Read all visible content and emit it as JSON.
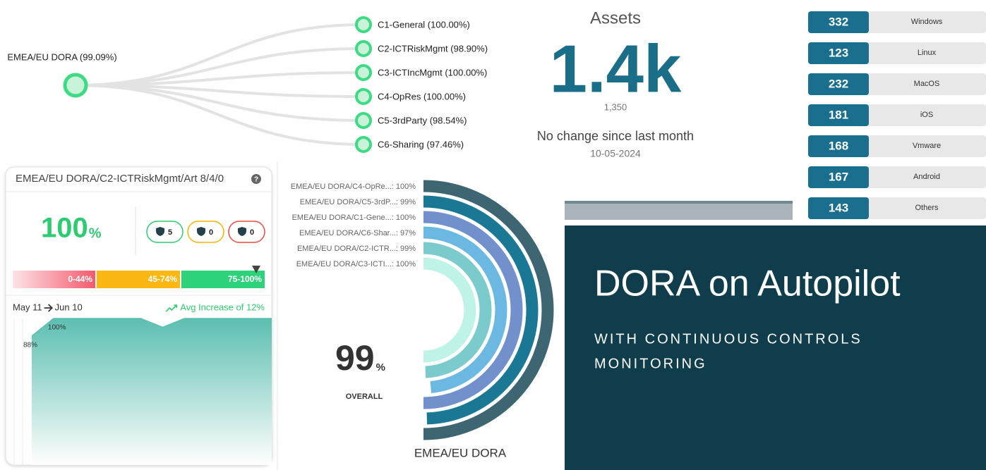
{
  "tree": {
    "root": "EMEA/EU DORA (99.09%)",
    "children": [
      "C1-General (100.00%)",
      "C2-ICTRiskMgmt (98.90%)",
      "C3-ICTIncMgmt (100.00%)",
      "C4-OpRes (100.00%)",
      "C5-3rdParty (98.54%)",
      "C6-Sharing (97.46%)"
    ]
  },
  "assets": {
    "title": "Assets",
    "value": "1.4k",
    "exact": "1,350",
    "change": "No change since last month",
    "date": "10-05-2024"
  },
  "platforms": [
    {
      "count": 332,
      "name": "Windows"
    },
    {
      "count": 123,
      "name": "Linux"
    },
    {
      "count": 232,
      "name": "MacOS"
    },
    {
      "count": 181,
      "name": "iOS"
    },
    {
      "count": 168,
      "name": "Vmware"
    },
    {
      "count": 167,
      "name": "Android"
    },
    {
      "count": 143,
      "name": "Others"
    }
  ],
  "card": {
    "title": "EMEA/EU DORA/C2-ICTRiskMgmt/Art 8/4/0",
    "help": "?",
    "score": 100,
    "score_unit": "%",
    "badges": [
      5,
      0,
      0
    ],
    "ranges": [
      "0-44%",
      "45-74%",
      "75-100%"
    ]
  },
  "banner": {
    "title": "DORA on Autopilot",
    "subtitle_lines": [
      "WITH CONTINUOUS CONTROLS",
      "MONITORING"
    ]
  },
  "chart_data": [
    {
      "type": "radial_bar",
      "title": "EMEA/EU DORA",
      "categories": [
        "EMEA/EU DORA/C4-OpRe...:",
        "EMEA/EU DORA/C5-3rdP...:",
        "EMEA/EU DORA/C1-Gene...:",
        "EMEA/EU DORA/C6-Shar...:",
        "EMEA/EU DORA/C2-ICTR...:",
        "EMEA/EU DORA/C3-ICTI...:"
      ],
      "values": [
        100,
        99,
        100,
        97,
        99,
        100
      ],
      "value_labels": [
        "100%",
        "99%",
        "100%",
        "97%",
        "99%",
        "100%"
      ],
      "colors": [
        "#3e6672",
        "#1b7895",
        "#7190cc",
        "#6bb9e2",
        "#7ccbcc",
        "#bff3e8"
      ],
      "ylim": [
        0,
        100
      ],
      "center_value": 99,
      "center_unit": "%",
      "center_label": "OVERALL"
    },
    {
      "type": "area",
      "date_from": "May 11",
      "date_to": "Jun 10",
      "annotation": "Avg Increase of 12%",
      "values": [
        88,
        100,
        100,
        100,
        100,
        100,
        94,
        100,
        100,
        100,
        100,
        100
      ],
      "value_labels": [
        "88%",
        "100%",
        null,
        null,
        null,
        null,
        null,
        null,
        null,
        null,
        null,
        null
      ],
      "ylim": [
        0,
        100
      ],
      "color": "#5cbfb1"
    }
  ]
}
